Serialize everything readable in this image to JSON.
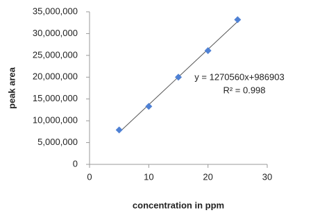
{
  "chart_data": {
    "type": "scatter",
    "x_label": "concentration in ppm",
    "y_label": "peak area",
    "annotations": [
      "y = 1270560x+986903",
      "R² = 0.998"
    ],
    "series": [
      {
        "name": "peak area",
        "color": "#4f81d4",
        "x": [
          5,
          10,
          15,
          20,
          25
        ],
        "values": [
          7900000,
          13300000,
          20000000,
          26100000,
          33200000
        ]
      },
      {
        "name": "Linear trendline",
        "color": "#555555",
        "x": [
          5,
          25
        ],
        "values": [
          7339703,
          32750903
        ]
      }
    ],
    "xlim": [
      0,
      30
    ],
    "xticks": [
      0,
      10,
      20,
      30
    ],
    "ylim": [
      0,
      35000000
    ],
    "yticks": [
      {
        "value": 0,
        "label": "0"
      },
      {
        "value": 5000000,
        "label": "5,000,000"
      },
      {
        "value": 10000000,
        "label": "10,000,000"
      },
      {
        "value": 15000000,
        "label": "15,000,000"
      },
      {
        "value": 20000000,
        "label": "20,000,000"
      },
      {
        "value": 25000000,
        "label": "25,000,000"
      },
      {
        "value": 30000000,
        "label": "30,000,000"
      },
      {
        "value": 35000000,
        "label": "35,000,000"
      }
    ],
    "grid": false
  }
}
